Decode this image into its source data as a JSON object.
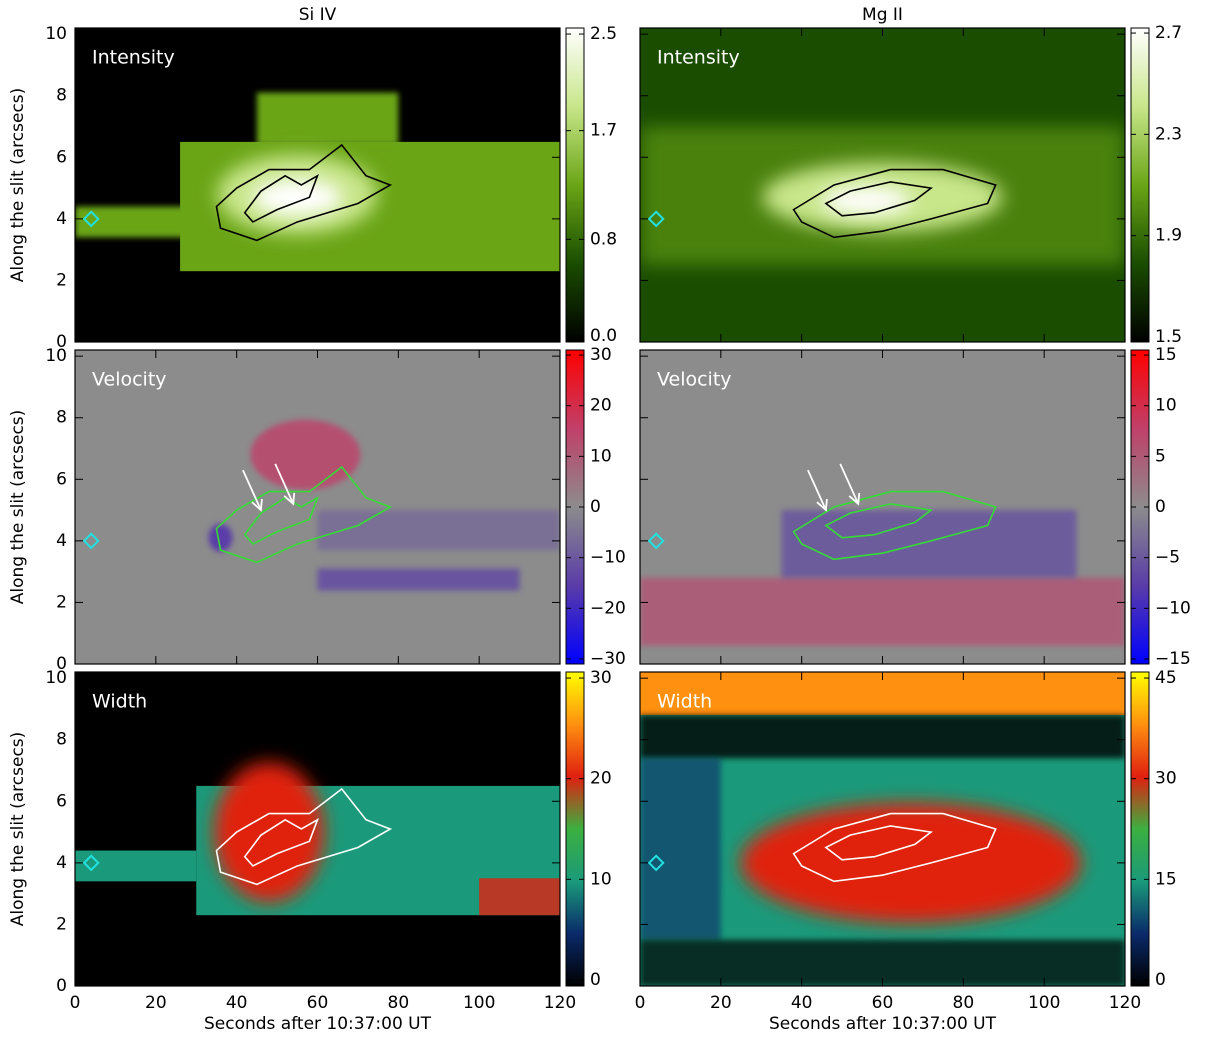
{
  "chart_data": [
    {
      "type": "heatmap",
      "title": "Si IV",
      "panel_label": "Intensity",
      "ylabel": "Along the slit (arcsecs)",
      "xlim": [
        0,
        120
      ],
      "xticks": [
        0,
        20,
        40,
        60,
        80,
        100,
        120
      ],
      "ylim": [
        0,
        10.2
      ],
      "yticks": [
        0,
        2,
        4,
        6,
        8,
        10
      ],
      "colormap": [
        "#000000",
        "#1a4d00",
        "#6aa516",
        "#c8e68a",
        "#ffffff"
      ],
      "colorbar_lim": [
        -0.05,
        2.55
      ],
      "colorbar_ticks": [
        {
          "value": 0,
          "label": "0.0"
        },
        0.8,
        1.7,
        2.5
      ]
    },
    {
      "type": "heatmap",
      "title": "Mg II",
      "panel_label": "Intensity",
      "xlim": [
        0,
        120
      ],
      "xticks": [
        0,
        20,
        40,
        60,
        80,
        100,
        120
      ],
      "ylim": [
        0,
        10.2
      ],
      "yticks": [
        0,
        2,
        4,
        6,
        8,
        10
      ],
      "colormap": [
        "#000000",
        "#1a4d00",
        "#6aa516",
        "#c8e68a",
        "#ffffff"
      ],
      "colorbar_lim": [
        1.48,
        2.72
      ],
      "colorbar_ticks": [
        1.5,
        1.9,
        2.3,
        2.7
      ]
    },
    {
      "type": "heatmap",
      "panel_label": "Velocity",
      "ylabel": "Along the slit (arcsecs)",
      "xlim": [
        0,
        120
      ],
      "xticks": [
        0,
        20,
        40,
        60,
        80,
        100,
        120
      ],
      "ylim": [
        0,
        10.2
      ],
      "yticks": [
        0,
        2,
        4,
        6,
        8,
        10
      ],
      "colormap": [
        "#0000ff",
        "#5a3ca8",
        "#8c8c8c",
        "#c0406a",
        "#ff0000"
      ],
      "colorbar_lim": [
        -31,
        31
      ],
      "colorbar_ticks": [
        {
          "value": -30,
          "label": "−30"
        },
        {
          "value": -20,
          "label": "−20"
        },
        {
          "value": -10,
          "label": "−10"
        },
        0,
        10,
        20,
        30
      ]
    },
    {
      "type": "heatmap",
      "panel_label": "Velocity",
      "xlim": [
        0,
        120
      ],
      "xticks": [
        0,
        20,
        40,
        60,
        80,
        100,
        120
      ],
      "ylim": [
        0,
        10.2
      ],
      "yticks": [
        0,
        2,
        4,
        6,
        8,
        10
      ],
      "colormap": [
        "#0000ff",
        "#5a3ca8",
        "#8c8c8c",
        "#c0406a",
        "#ff0000"
      ],
      "colorbar_lim": [
        -15.5,
        15.5
      ],
      "colorbar_ticks": [
        {
          "value": -15,
          "label": "−15"
        },
        {
          "value": -10,
          "label": "−10"
        },
        {
          "value": -5,
          "label": "−5"
        },
        0,
        5,
        10,
        15
      ]
    },
    {
      "type": "heatmap",
      "panel_label": "Width",
      "ylabel": "Along the slit (arcsecs)",
      "xlabel": "Seconds after 10:37:00 UT",
      "xlim": [
        0,
        120
      ],
      "xticks": [
        0,
        20,
        40,
        60,
        80,
        100,
        120
      ],
      "ylim": [
        0,
        10.2
      ],
      "yticks": [
        0,
        2,
        4,
        6,
        8,
        10
      ],
      "colormap": [
        "#000000",
        "#0a2a6a",
        "#1a9a7a",
        "#3cb040",
        "#e02010",
        "#ff9010",
        "#ffff00"
      ],
      "colorbar_lim": [
        -0.6,
        30.6
      ],
      "colorbar_ticks": [
        0,
        10,
        20,
        30
      ]
    },
    {
      "type": "heatmap",
      "panel_label": "Width",
      "xlabel": "Seconds after 10:37:00 UT",
      "xlim": [
        0,
        120
      ],
      "xticks": [
        0,
        20,
        40,
        60,
        80,
        100,
        120
      ],
      "ylim": [
        0,
        10.2
      ],
      "yticks": [
        0,
        2,
        4,
        6,
        8,
        10
      ],
      "colormap": [
        "#000000",
        "#0a2a6a",
        "#1a9a7a",
        "#3cb040",
        "#e02010",
        "#ff9010",
        "#ffff00"
      ],
      "colorbar_lim": [
        -0.9,
        45.9
      ],
      "colorbar_ticks": [
        0,
        15,
        30,
        45
      ]
    }
  ]
}
